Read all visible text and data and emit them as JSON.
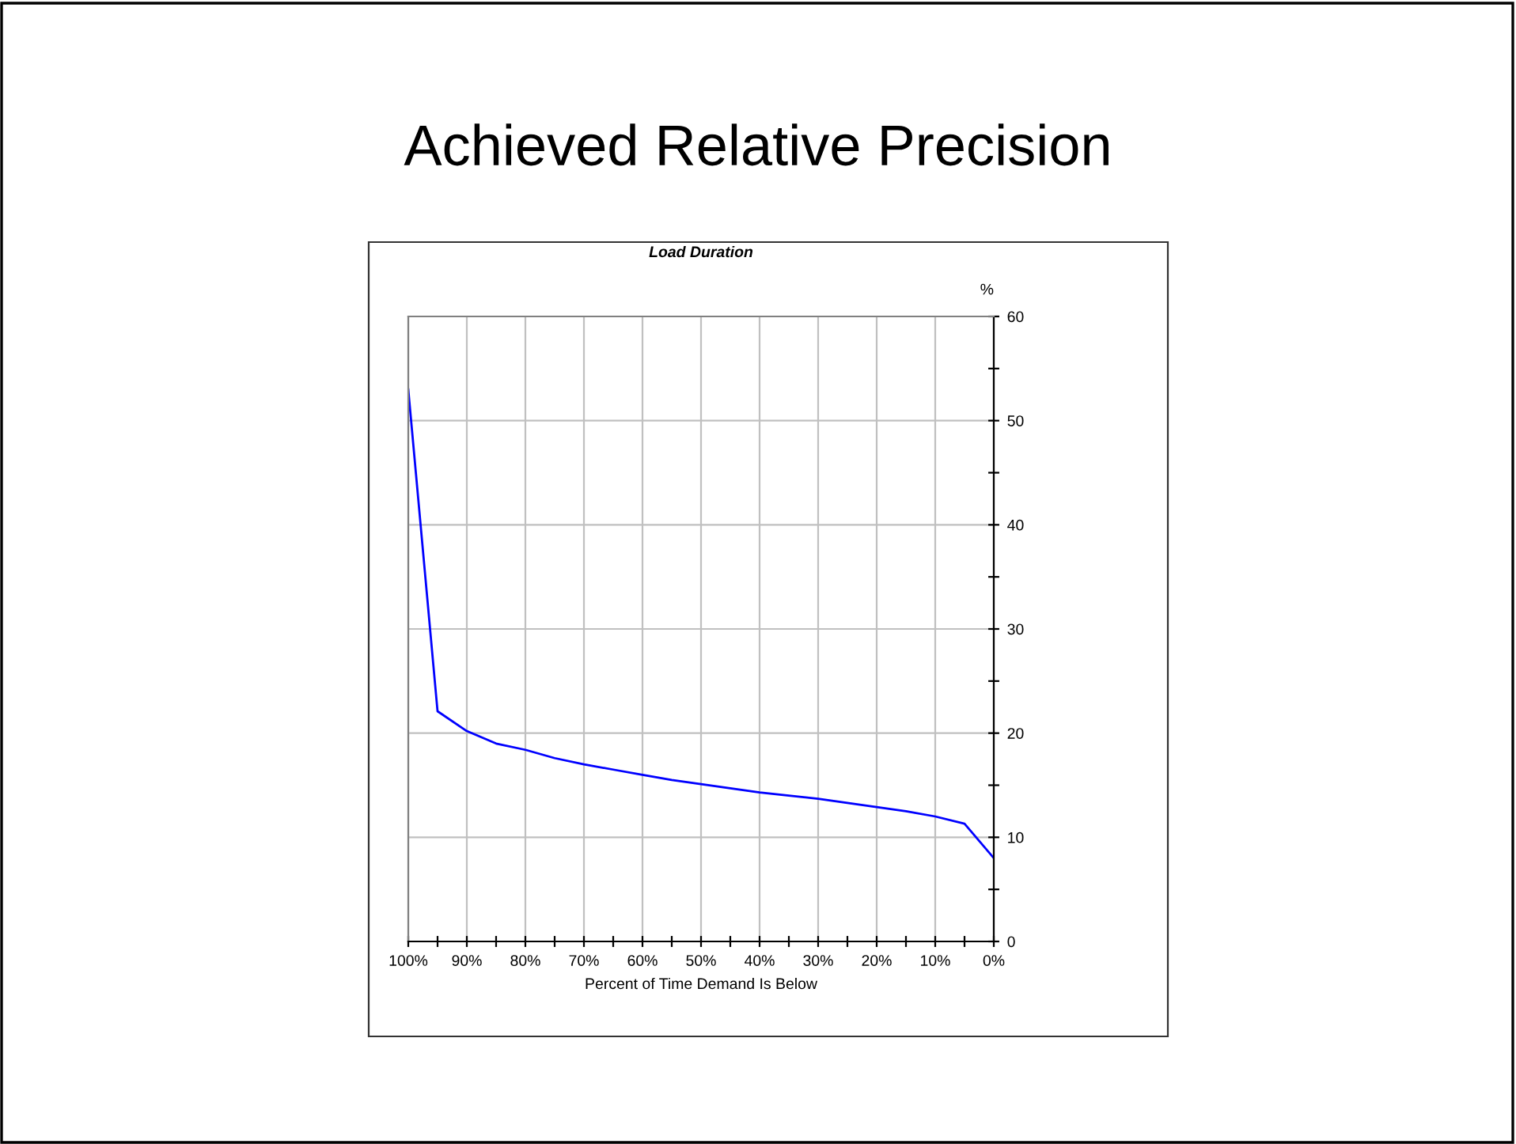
{
  "chart_data": {
    "type": "line",
    "title": "Achieved Relative Precision",
    "subtitle": "Load Duration",
    "xlabel": "Percent of Time Demand Is Below",
    "ylabel": "%",
    "x": [
      100,
      95,
      90,
      85,
      80,
      75,
      70,
      65,
      60,
      55,
      50,
      45,
      40,
      35,
      30,
      25,
      20,
      15,
      10,
      5,
      0
    ],
    "series": [
      {
        "color": "#0000ff",
        "values": [
          53,
          22.1,
          20.2,
          19,
          18.4,
          17.6,
          17,
          16.5,
          16,
          15.5,
          15.1,
          14.7,
          14.3,
          14,
          13.7,
          13.3,
          12.9,
          12.5,
          12,
          11.3,
          8
        ]
      }
    ],
    "xlim": [
      100,
      0
    ],
    "ylim": [
      0,
      60
    ],
    "xticks": [
      {
        "value": 100,
        "label": "100%"
      },
      {
        "value": 95,
        "label": null
      },
      {
        "value": 90,
        "label": "90%"
      },
      {
        "value": 85,
        "label": null
      },
      {
        "value": 80,
        "label": "80%"
      },
      {
        "value": 75,
        "label": null
      },
      {
        "value": 70,
        "label": "70%"
      },
      {
        "value": 65,
        "label": null
      },
      {
        "value": 60,
        "label": "60%"
      },
      {
        "value": 55,
        "label": null
      },
      {
        "value": 50,
        "label": "50%"
      },
      {
        "value": 45,
        "label": null
      },
      {
        "value": 40,
        "label": "40%"
      },
      {
        "value": 35,
        "label": null
      },
      {
        "value": 30,
        "label": "30%"
      },
      {
        "value": 25,
        "label": null
      },
      {
        "value": 20,
        "label": "20%"
      },
      {
        "value": 15,
        "label": null
      },
      {
        "value": 10,
        "label": "10%"
      },
      {
        "value": 5,
        "label": null
      },
      {
        "value": 0,
        "label": "0%"
      }
    ],
    "yticks": [
      0,
      {
        "value": 5,
        "label": null
      },
      10,
      {
        "value": 15,
        "label": null
      },
      20,
      {
        "value": 25,
        "label": null
      },
      30,
      {
        "value": 35,
        "label": null
      },
      40,
      {
        "value": 45,
        "label": null
      },
      50,
      {
        "value": 55,
        "label": null
      },
      60
    ],
    "grid": true,
    "marker": "none",
    "line_style": "solid"
  }
}
